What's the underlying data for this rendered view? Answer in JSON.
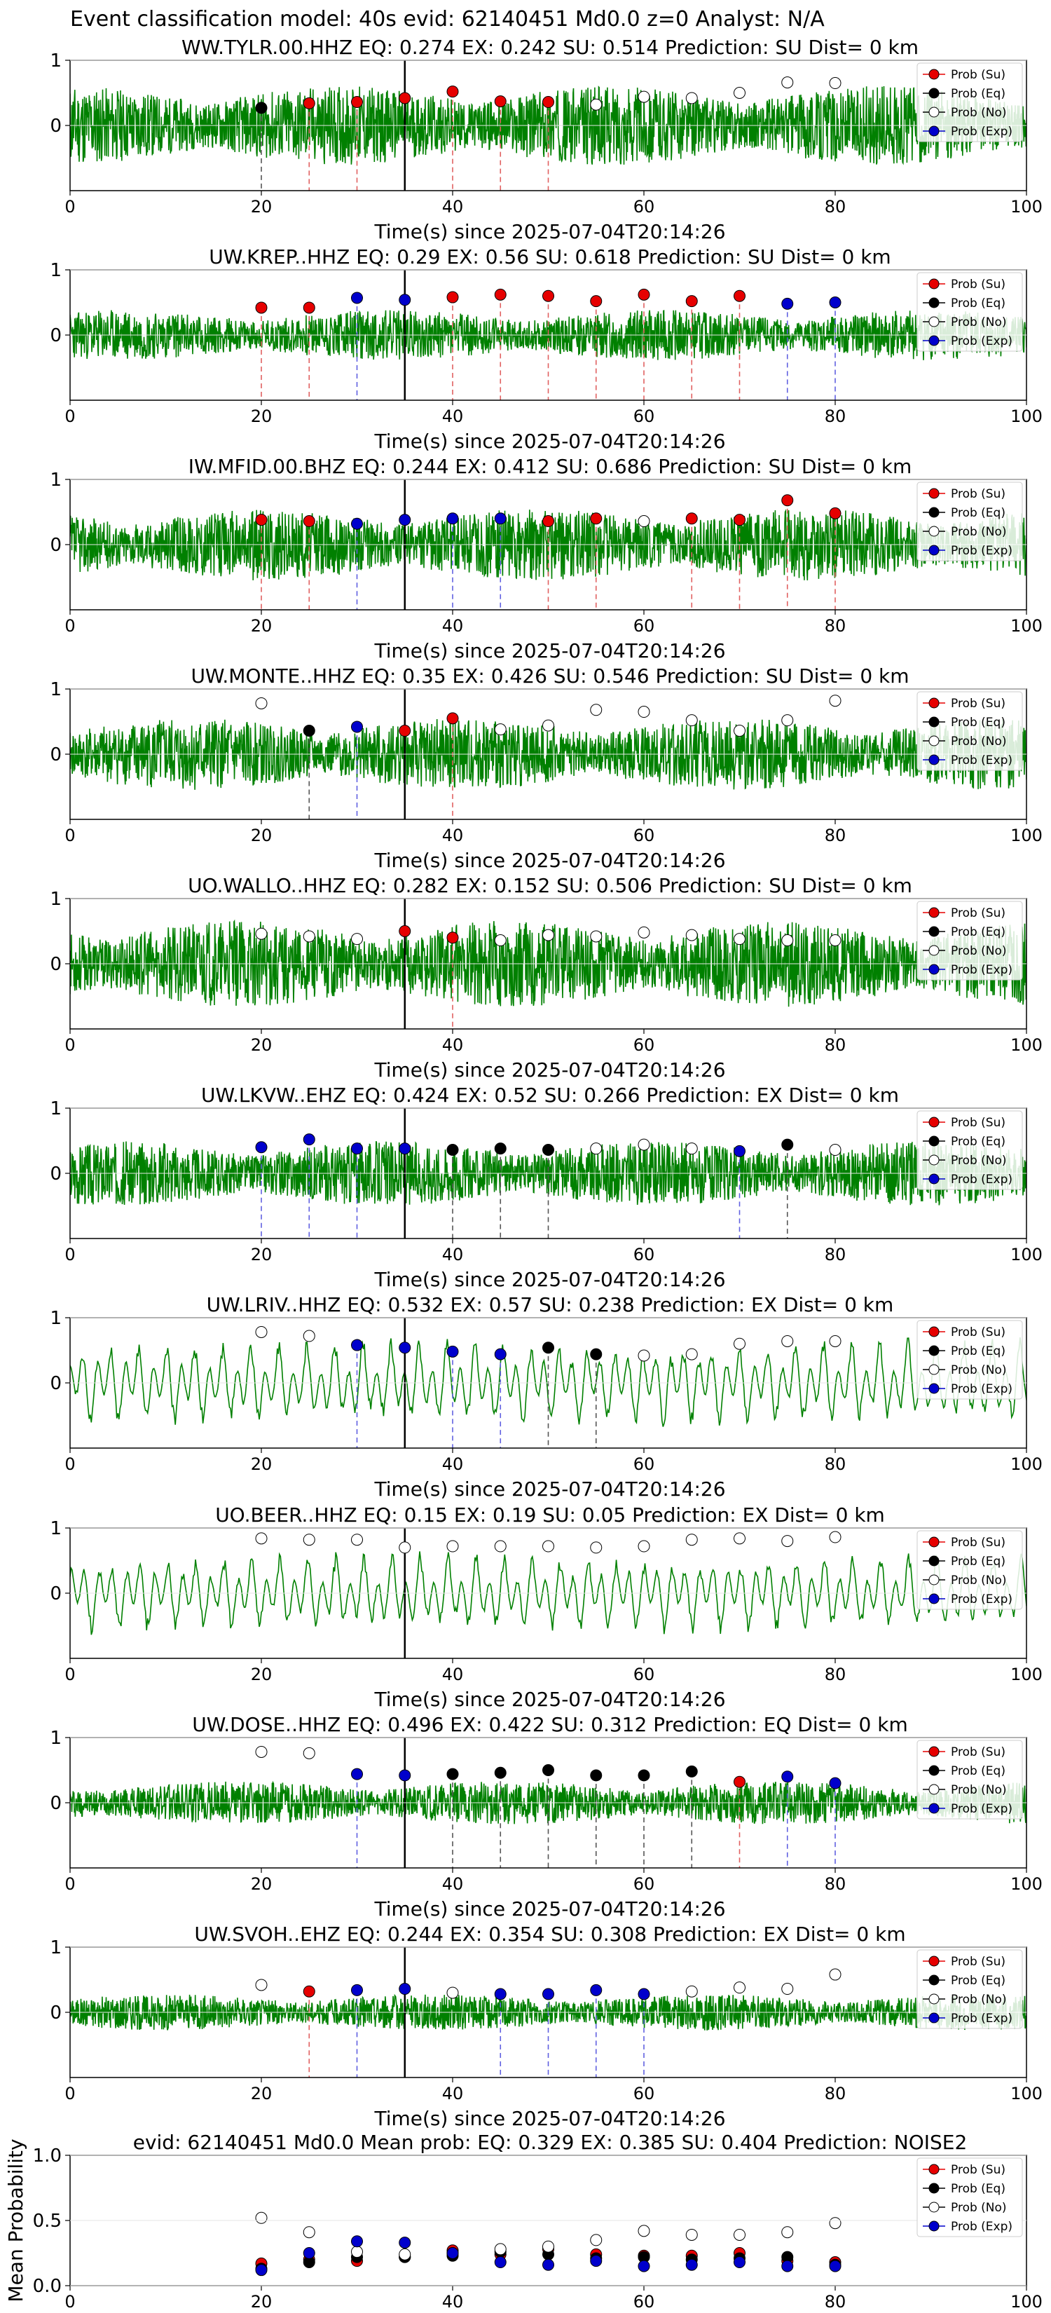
{
  "figure_title": "Event classification model: 40s evid: 62140451 Md0.0 z=0 Analyst: N/A",
  "legend_labels": [
    "Prob (Su)",
    "Prob (Eq)",
    "Prob (No)",
    "Prob (Exp)"
  ],
  "colors": {
    "su": "#e60000",
    "eq": "#000000",
    "no": "#ffffff",
    "exp": "#0000cc",
    "wave": "#008000"
  },
  "chart_data": [
    {
      "type": "line",
      "title": "WW.TYLR.00.HHZ   EQ: 0.274  EX: 0.242  SU: 0.514   Prediction: SU    Dist= 0 km",
      "xlabel": "Time(s) since 2025-07-04T20:14:26",
      "xlim": [
        0,
        100
      ],
      "ylim": [
        -1,
        1
      ],
      "xticks": [
        "0",
        "20",
        "40",
        "60",
        "80",
        "100"
      ],
      "yticks": [
        "0",
        "1"
      ],
      "waveform": {
        "style": "noise",
        "amp": 0.55,
        "seed": 11
      },
      "onset_line_x": 35,
      "windows": [
        {
          "x": 20,
          "y": 0.27,
          "c": "eq"
        },
        {
          "x": 25,
          "y": 0.34,
          "c": "su"
        },
        {
          "x": 30,
          "y": 0.36,
          "c": "su"
        },
        {
          "x": 35,
          "y": 0.42,
          "c": "su"
        },
        {
          "x": 40,
          "y": 0.52,
          "c": "su"
        },
        {
          "x": 45,
          "y": 0.37,
          "c": "su"
        },
        {
          "x": 50,
          "y": 0.36,
          "c": "su"
        },
        {
          "x": 55,
          "y": 0.32,
          "c": "no"
        },
        {
          "x": 60,
          "y": 0.44,
          "c": "no"
        },
        {
          "x": 65,
          "y": 0.42,
          "c": "no"
        },
        {
          "x": 70,
          "y": 0.5,
          "c": "no"
        },
        {
          "x": 75,
          "y": 0.66,
          "c": "no"
        },
        {
          "x": 80,
          "y": 0.65,
          "c": "no"
        }
      ]
    },
    {
      "type": "line",
      "title": "UW.KREP..HHZ   EQ: 0.29  EX: 0.56  SU: 0.618   Prediction: SU    Dist= 0 km",
      "xlabel": "Time(s) since 2025-07-04T20:14:26",
      "xlim": [
        0,
        100
      ],
      "ylim": [
        -1,
        1
      ],
      "xticks": [
        "0",
        "20",
        "40",
        "60",
        "80",
        "100"
      ],
      "yticks": [
        "0",
        "1"
      ],
      "waveform": {
        "style": "noise",
        "amp": 0.35,
        "seed": 23
      },
      "onset_line_x": 35,
      "windows": [
        {
          "x": 20,
          "y": 0.42,
          "c": "su"
        },
        {
          "x": 25,
          "y": 0.42,
          "c": "su"
        },
        {
          "x": 30,
          "y": 0.57,
          "c": "exp"
        },
        {
          "x": 35,
          "y": 0.54,
          "c": "exp"
        },
        {
          "x": 40,
          "y": 0.58,
          "c": "su"
        },
        {
          "x": 45,
          "y": 0.62,
          "c": "su"
        },
        {
          "x": 50,
          "y": 0.6,
          "c": "su"
        },
        {
          "x": 55,
          "y": 0.52,
          "c": "su"
        },
        {
          "x": 60,
          "y": 0.62,
          "c": "su"
        },
        {
          "x": 65,
          "y": 0.52,
          "c": "su"
        },
        {
          "x": 70,
          "y": 0.6,
          "c": "su"
        },
        {
          "x": 75,
          "y": 0.48,
          "c": "exp"
        },
        {
          "x": 80,
          "y": 0.5,
          "c": "exp"
        }
      ]
    },
    {
      "type": "line",
      "title": "IW.MFID.00.BHZ   EQ: 0.244  EX: 0.412  SU: 0.686   Prediction: SU    Dist= 0 km",
      "xlabel": "Time(s) since 2025-07-04T20:14:26",
      "xlim": [
        0,
        100
      ],
      "ylim": [
        -1,
        1
      ],
      "xticks": [
        "0",
        "20",
        "40",
        "60",
        "80",
        "100"
      ],
      "yticks": [
        "0",
        "1"
      ],
      "waveform": {
        "style": "noise",
        "amp": 0.5,
        "seed": 37
      },
      "onset_line_x": 35,
      "windows": [
        {
          "x": 20,
          "y": 0.38,
          "c": "su"
        },
        {
          "x": 25,
          "y": 0.36,
          "c": "su"
        },
        {
          "x": 30,
          "y": 0.32,
          "c": "exp"
        },
        {
          "x": 35,
          "y": 0.38,
          "c": "exp"
        },
        {
          "x": 40,
          "y": 0.4,
          "c": "exp"
        },
        {
          "x": 45,
          "y": 0.4,
          "c": "exp"
        },
        {
          "x": 50,
          "y": 0.36,
          "c": "su"
        },
        {
          "x": 55,
          "y": 0.4,
          "c": "su"
        },
        {
          "x": 60,
          "y": 0.36,
          "c": "no"
        },
        {
          "x": 65,
          "y": 0.4,
          "c": "su"
        },
        {
          "x": 70,
          "y": 0.38,
          "c": "su"
        },
        {
          "x": 75,
          "y": 0.68,
          "c": "su"
        },
        {
          "x": 80,
          "y": 0.48,
          "c": "su"
        }
      ]
    },
    {
      "type": "line",
      "title": "UW.MONTE..HHZ   EQ: 0.35  EX: 0.426  SU: 0.546   Prediction: SU    Dist= 0 km",
      "xlabel": "Time(s) since 2025-07-04T20:14:26",
      "xlim": [
        0,
        100
      ],
      "ylim": [
        -1,
        1
      ],
      "xticks": [
        "0",
        "20",
        "40",
        "60",
        "80",
        "100"
      ],
      "yticks": [
        "0",
        "1"
      ],
      "waveform": {
        "style": "noise",
        "amp": 0.5,
        "seed": 41
      },
      "onset_line_x": 35,
      "windows": [
        {
          "x": 20,
          "y": 0.78,
          "c": "no"
        },
        {
          "x": 25,
          "y": 0.36,
          "c": "eq"
        },
        {
          "x": 30,
          "y": 0.42,
          "c": "exp"
        },
        {
          "x": 35,
          "y": 0.36,
          "c": "su"
        },
        {
          "x": 40,
          "y": 0.55,
          "c": "su"
        },
        {
          "x": 45,
          "y": 0.38,
          "c": "no"
        },
        {
          "x": 50,
          "y": 0.44,
          "c": "no"
        },
        {
          "x": 55,
          "y": 0.68,
          "c": "no"
        },
        {
          "x": 60,
          "y": 0.65,
          "c": "no"
        },
        {
          "x": 65,
          "y": 0.52,
          "c": "no"
        },
        {
          "x": 70,
          "y": 0.36,
          "c": "no"
        },
        {
          "x": 75,
          "y": 0.52,
          "c": "no"
        },
        {
          "x": 80,
          "y": 0.82,
          "c": "no"
        }
      ]
    },
    {
      "type": "line",
      "title": "UO.WALLO..HHZ   EQ: 0.282  EX: 0.152  SU: 0.506   Prediction: SU    Dist= 0 km",
      "xlabel": "Time(s) since 2025-07-04T20:14:26",
      "xlim": [
        0,
        100
      ],
      "ylim": [
        -1,
        1
      ],
      "xticks": [
        "0",
        "20",
        "40",
        "60",
        "80",
        "100"
      ],
      "yticks": [
        "0",
        "1"
      ],
      "waveform": {
        "style": "noise",
        "amp": 0.6,
        "seed": 53
      },
      "onset_line_x": 35,
      "windows": [
        {
          "x": 20,
          "y": 0.46,
          "c": "no"
        },
        {
          "x": 25,
          "y": 0.42,
          "c": "no"
        },
        {
          "x": 30,
          "y": 0.38,
          "c": "no"
        },
        {
          "x": 35,
          "y": 0.5,
          "c": "su"
        },
        {
          "x": 40,
          "y": 0.4,
          "c": "su"
        },
        {
          "x": 45,
          "y": 0.36,
          "c": "no"
        },
        {
          "x": 50,
          "y": 0.44,
          "c": "no"
        },
        {
          "x": 55,
          "y": 0.42,
          "c": "no"
        },
        {
          "x": 60,
          "y": 0.48,
          "c": "no"
        },
        {
          "x": 65,
          "y": 0.44,
          "c": "no"
        },
        {
          "x": 70,
          "y": 0.38,
          "c": "no"
        },
        {
          "x": 75,
          "y": 0.36,
          "c": "no"
        },
        {
          "x": 80,
          "y": 0.36,
          "c": "no"
        }
      ]
    },
    {
      "type": "line",
      "title": "UW.LKVW..EHZ   EQ: 0.424  EX: 0.52  SU: 0.266   Prediction: EX    Dist= 0 km",
      "xlabel": "Time(s) since 2025-07-04T20:14:26",
      "xlim": [
        0,
        100
      ],
      "ylim": [
        -1,
        1
      ],
      "xticks": [
        "0",
        "20",
        "40",
        "60",
        "80",
        "100"
      ],
      "yticks": [
        "0",
        "1"
      ],
      "waveform": {
        "style": "noise",
        "amp": 0.45,
        "seed": 67
      },
      "onset_line_x": 35,
      "windows": [
        {
          "x": 20,
          "y": 0.4,
          "c": "exp"
        },
        {
          "x": 25,
          "y": 0.52,
          "c": "exp"
        },
        {
          "x": 30,
          "y": 0.38,
          "c": "exp"
        },
        {
          "x": 35,
          "y": 0.38,
          "c": "exp"
        },
        {
          "x": 40,
          "y": 0.36,
          "c": "eq"
        },
        {
          "x": 45,
          "y": 0.38,
          "c": "eq"
        },
        {
          "x": 50,
          "y": 0.36,
          "c": "eq"
        },
        {
          "x": 55,
          "y": 0.38,
          "c": "no"
        },
        {
          "x": 60,
          "y": 0.44,
          "c": "no"
        },
        {
          "x": 65,
          "y": 0.38,
          "c": "no"
        },
        {
          "x": 70,
          "y": 0.34,
          "c": "exp"
        },
        {
          "x": 75,
          "y": 0.44,
          "c": "eq"
        },
        {
          "x": 80,
          "y": 0.36,
          "c": "no"
        }
      ]
    },
    {
      "type": "line",
      "title": "UW.LRIV..HHZ   EQ: 0.532  EX: 0.57  SU: 0.238   Prediction: EX    Dist= 0 km",
      "xlabel": "Time(s) since 2025-07-04T20:14:26",
      "xlim": [
        0,
        100
      ],
      "ylim": [
        -1,
        1
      ],
      "xticks": [
        "0",
        "20",
        "40",
        "60",
        "80",
        "100"
      ],
      "yticks": [
        "0",
        "1"
      ],
      "waveform": {
        "style": "osc",
        "amp": 0.55,
        "seed": 71
      },
      "onset_line_x": 35,
      "windows": [
        {
          "x": 20,
          "y": 0.78,
          "c": "no"
        },
        {
          "x": 25,
          "y": 0.72,
          "c": "no"
        },
        {
          "x": 30,
          "y": 0.58,
          "c": "exp"
        },
        {
          "x": 35,
          "y": 0.54,
          "c": "exp"
        },
        {
          "x": 40,
          "y": 0.48,
          "c": "exp"
        },
        {
          "x": 45,
          "y": 0.44,
          "c": "exp"
        },
        {
          "x": 50,
          "y": 0.54,
          "c": "eq"
        },
        {
          "x": 55,
          "y": 0.44,
          "c": "eq"
        },
        {
          "x": 60,
          "y": 0.42,
          "c": "no"
        },
        {
          "x": 65,
          "y": 0.44,
          "c": "no"
        },
        {
          "x": 70,
          "y": 0.6,
          "c": "no"
        },
        {
          "x": 75,
          "y": 0.64,
          "c": "no"
        },
        {
          "x": 80,
          "y": 0.64,
          "c": "no"
        }
      ]
    },
    {
      "type": "line",
      "title": "UO.BEER..HHZ   EQ: 0.15  EX: 0.19  SU: 0.05   Prediction: EX    Dist= 0 km",
      "xlabel": "Time(s) since 2025-07-04T20:14:26",
      "xlim": [
        0,
        100
      ],
      "ylim": [
        -1,
        1
      ],
      "xticks": [
        "0",
        "20",
        "40",
        "60",
        "80",
        "100"
      ],
      "yticks": [
        "0",
        "1"
      ],
      "waveform": {
        "style": "osc",
        "amp": 0.5,
        "seed": 83
      },
      "onset_line_x": 35,
      "windows": [
        {
          "x": 20,
          "y": 0.84,
          "c": "no"
        },
        {
          "x": 25,
          "y": 0.82,
          "c": "no"
        },
        {
          "x": 30,
          "y": 0.82,
          "c": "no"
        },
        {
          "x": 35,
          "y": 0.7,
          "c": "no"
        },
        {
          "x": 40,
          "y": 0.72,
          "c": "no"
        },
        {
          "x": 45,
          "y": 0.72,
          "c": "no"
        },
        {
          "x": 50,
          "y": 0.72,
          "c": "no"
        },
        {
          "x": 55,
          "y": 0.7,
          "c": "no"
        },
        {
          "x": 60,
          "y": 0.72,
          "c": "no"
        },
        {
          "x": 65,
          "y": 0.82,
          "c": "no"
        },
        {
          "x": 70,
          "y": 0.84,
          "c": "no"
        },
        {
          "x": 75,
          "y": 0.8,
          "c": "no"
        },
        {
          "x": 80,
          "y": 0.86,
          "c": "no"
        }
      ]
    },
    {
      "type": "line",
      "title": "UW.DOSE..HHZ   EQ: 0.496  EX: 0.422  SU: 0.312   Prediction: EQ    Dist= 0 km",
      "xlabel": "Time(s) since 2025-07-04T20:14:26",
      "xlim": [
        0,
        100
      ],
      "ylim": [
        -1,
        1
      ],
      "xticks": [
        "0",
        "20",
        "40",
        "60",
        "80",
        "100"
      ],
      "yticks": [
        "0",
        "1"
      ],
      "waveform": {
        "style": "noise",
        "amp": 0.3,
        "seed": 97
      },
      "onset_line_x": 35,
      "windows": [
        {
          "x": 20,
          "y": 0.78,
          "c": "no"
        },
        {
          "x": 25,
          "y": 0.76,
          "c": "no"
        },
        {
          "x": 30,
          "y": 0.44,
          "c": "exp"
        },
        {
          "x": 35,
          "y": 0.42,
          "c": "exp"
        },
        {
          "x": 40,
          "y": 0.44,
          "c": "eq"
        },
        {
          "x": 45,
          "y": 0.46,
          "c": "eq"
        },
        {
          "x": 50,
          "y": 0.5,
          "c": "eq"
        },
        {
          "x": 55,
          "y": 0.42,
          "c": "eq"
        },
        {
          "x": 60,
          "y": 0.42,
          "c": "eq"
        },
        {
          "x": 65,
          "y": 0.48,
          "c": "eq"
        },
        {
          "x": 70,
          "y": 0.32,
          "c": "su"
        },
        {
          "x": 75,
          "y": 0.4,
          "c": "exp"
        },
        {
          "x": 80,
          "y": 0.3,
          "c": "exp"
        }
      ]
    },
    {
      "type": "line",
      "title": "UW.SVOH..EHZ   EQ: 0.244  EX: 0.354  SU: 0.308   Prediction: EX    Dist= 0 km",
      "xlabel": "Time(s) since 2025-07-04T20:14:26",
      "xlim": [
        0,
        100
      ],
      "ylim": [
        -1,
        1
      ],
      "xticks": [
        "0",
        "20",
        "40",
        "60",
        "80",
        "100"
      ],
      "yticks": [
        "0",
        "1"
      ],
      "waveform": {
        "style": "noise",
        "amp": 0.25,
        "seed": 101
      },
      "onset_line_x": 35,
      "windows": [
        {
          "x": 20,
          "y": 0.42,
          "c": "no"
        },
        {
          "x": 25,
          "y": 0.32,
          "c": "su"
        },
        {
          "x": 30,
          "y": 0.34,
          "c": "exp"
        },
        {
          "x": 35,
          "y": 0.36,
          "c": "exp"
        },
        {
          "x": 40,
          "y": 0.3,
          "c": "no"
        },
        {
          "x": 45,
          "y": 0.28,
          "c": "exp"
        },
        {
          "x": 50,
          "y": 0.28,
          "c": "exp"
        },
        {
          "x": 55,
          "y": 0.34,
          "c": "exp"
        },
        {
          "x": 60,
          "y": 0.28,
          "c": "exp"
        },
        {
          "x": 65,
          "y": 0.32,
          "c": "no"
        },
        {
          "x": 70,
          "y": 0.38,
          "c": "no"
        },
        {
          "x": 75,
          "y": 0.36,
          "c": "no"
        },
        {
          "x": 80,
          "y": 0.58,
          "c": "no"
        }
      ]
    },
    {
      "type": "scatter",
      "title": "evid: 62140451  Md0.0   Mean prob:   EQ: 0.329  EX: 0.385  SU: 0.404   Prediction: NOISE2",
      "xlabel": "",
      "ylabel": "Mean Probability",
      "xlim": [
        0,
        100
      ],
      "ylim": [
        0,
        1
      ],
      "xticks": [
        "0",
        "20",
        "40",
        "60",
        "80",
        "100"
      ],
      "yticks": [
        "0.0",
        "0.5",
        "1.0"
      ],
      "x": [
        20,
        25,
        30,
        35,
        40,
        45,
        50,
        55,
        60,
        65,
        70,
        75,
        80
      ],
      "series": [
        {
          "name": "Prob (Su)",
          "key": "su",
          "values": [
            0.17,
            0.2,
            0.19,
            0.22,
            0.27,
            0.24,
            0.28,
            0.24,
            0.23,
            0.23,
            0.25,
            0.19,
            0.18
          ]
        },
        {
          "name": "Prob (Eq)",
          "key": "eq",
          "values": [
            0.13,
            0.18,
            0.22,
            0.22,
            0.23,
            0.26,
            0.24,
            0.21,
            0.22,
            0.2,
            0.21,
            0.22,
            0.16
          ]
        },
        {
          "name": "Prob (No)",
          "key": "no",
          "values": [
            0.52,
            0.41,
            0.26,
            0.24,
            0.25,
            0.28,
            0.3,
            0.35,
            0.42,
            0.39,
            0.39,
            0.41,
            0.48
          ]
        },
        {
          "name": "Prob (Exp)",
          "key": "exp",
          "values": [
            0.12,
            0.25,
            0.34,
            0.33,
            0.25,
            0.18,
            0.16,
            0.19,
            0.15,
            0.16,
            0.18,
            0.15,
            0.15
          ]
        }
      ]
    }
  ]
}
